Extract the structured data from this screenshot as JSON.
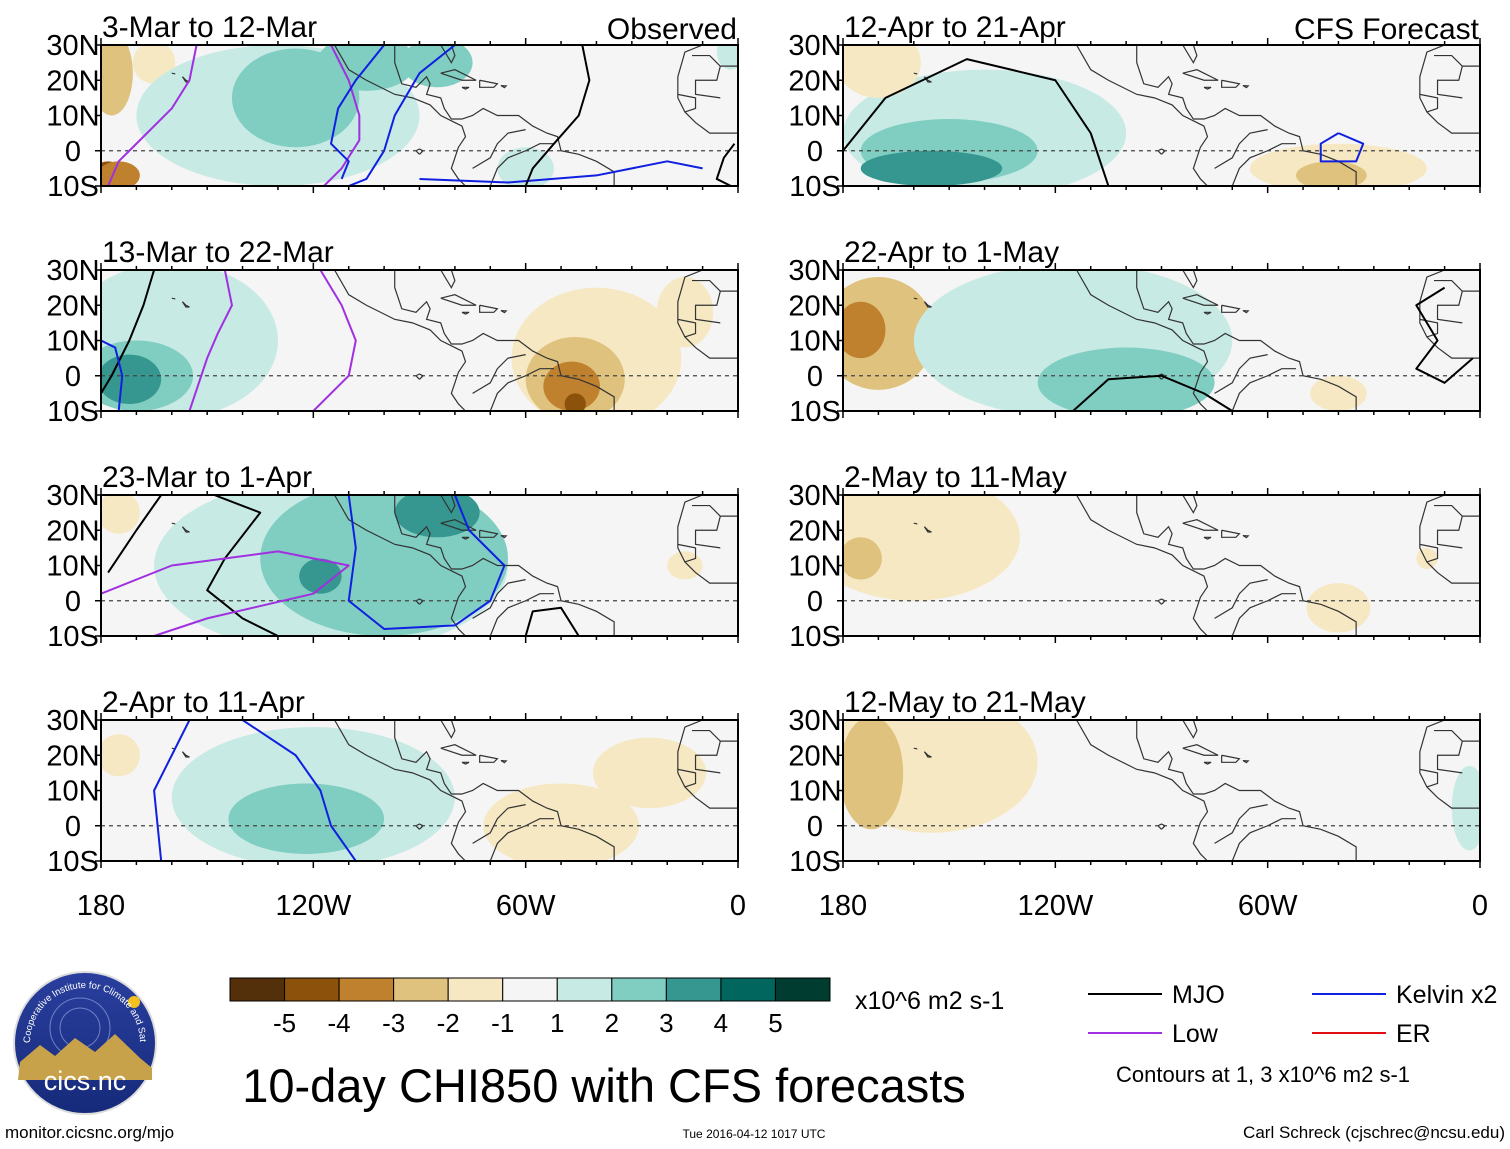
{
  "chart_data": {
    "type": "heatmap",
    "title": "10-day CHI850 with CFS forecasts",
    "columns": [
      {
        "label": "Observed",
        "panels": [
          "3-Mar to 12-Mar",
          "13-Mar to 22-Mar",
          "23-Mar to 1-Apr",
          "2-Apr to 11-Apr"
        ]
      },
      {
        "label": "CFS Forecast",
        "panels": [
          "12-Apr to 21-Apr",
          "22-Apr to 1-May",
          "2-May to 11-May",
          "12-May to 21-May"
        ]
      }
    ],
    "lat_ticks": [
      "30N",
      "20N",
      "10N",
      "0",
      "10S"
    ],
    "lat_range": [
      -10,
      30
    ],
    "lon_ticks": [
      "180",
      "120W",
      "60W",
      "0"
    ],
    "lon_range": [
      -180,
      0
    ],
    "colorbar": {
      "labels": [
        "-5",
        "-4",
        "-3",
        "-2",
        "-1",
        "1",
        "2",
        "3",
        "4",
        "5"
      ],
      "colors": [
        "#54300a",
        "#8c510a",
        "#bf812d",
        "#dfc27d",
        "#f6e8c3",
        "#f5f5f5",
        "#c7eae5",
        "#80cdc1",
        "#35978f",
        "#01665e",
        "#003c30"
      ],
      "units": "x10^6 m2 s-1"
    },
    "legend": [
      {
        "label": "MJO",
        "color": "#000000"
      },
      {
        "label": "Kelvin x2",
        "color": "#1020e0"
      },
      {
        "label": "Low",
        "color": "#a030e0"
      },
      {
        "label": "ER",
        "color": "#e01010"
      }
    ],
    "contour_note": "Contours at 1, 3 x10^6 m2 s-1",
    "panels": [
      {
        "blobs": [
          {
            "lon": -177,
            "lat": 22,
            "rl": 6,
            "rt": 12,
            "v": -2
          },
          {
            "lon": -178,
            "lat": -8,
            "rl": 5,
            "rt": 5,
            "v": -4
          },
          {
            "lon": -175,
            "lat": -7,
            "rl": 6,
            "rt": 4,
            "v": -3
          },
          {
            "lon": -165,
            "lat": 25,
            "rl": 6,
            "rt": 6,
            "v": -1
          },
          {
            "lon": -130,
            "lat": 10,
            "rl": 40,
            "rt": 20,
            "v": 1
          },
          {
            "lon": -125,
            "lat": 15,
            "rl": 18,
            "rt": 14,
            "v": 2
          },
          {
            "lon": -105,
            "lat": 25,
            "rl": 14,
            "rt": 8,
            "v": 2
          },
          {
            "lon": -85,
            "lat": 25,
            "rl": 10,
            "rt": 7,
            "v": 2
          },
          {
            "lon": -60,
            "lat": -5,
            "rl": 8,
            "rt": 6,
            "v": 1
          },
          {
            "lon": -2,
            "lat": 28,
            "rl": 4,
            "rt": 5,
            "v": 1
          }
        ],
        "lines": [
          {
            "c": "#a030e0",
            "pts": [
              [
                -178,
                -10
              ],
              [
                -175,
                -3
              ],
              [
                -167,
                5
              ],
              [
                -160,
                12
              ],
              [
                -155,
                20
              ],
              [
                -153,
                30
              ]
            ]
          },
          {
            "c": "#a030e0",
            "pts": [
              [
                -115,
                30
              ],
              [
                -110,
                20
              ],
              [
                -107,
                10
              ],
              [
                -107,
                3
              ],
              [
                -112,
                -5
              ],
              [
                -117,
                -10
              ]
            ]
          },
          {
            "c": "#1020e0",
            "pts": [
              [
                -100,
                30
              ],
              [
                -108,
                20
              ],
              [
                -113,
                12
              ],
              [
                -115,
                2
              ],
              [
                -110,
                -3
              ],
              [
                -112,
                -8
              ]
            ]
          },
          {
            "c": "#1020e0",
            "pts": [
              [
                -80,
                30
              ],
              [
                -90,
                22
              ],
              [
                -97,
                10
              ],
              [
                -100,
                0
              ],
              [
                -105,
                -8
              ],
              [
                -110,
                -10
              ]
            ]
          },
          {
            "c": "#1020e0",
            "pts": [
              [
                -90,
                -8
              ],
              [
                -65,
                -9
              ],
              [
                -40,
                -7
              ],
              [
                -20,
                -3
              ],
              [
                -10,
                -5
              ]
            ]
          },
          {
            "c": "#000000",
            "pts": [
              [
                -44,
                30
              ],
              [
                -42,
                20
              ],
              [
                -45,
                10
              ],
              [
                -52,
                2
              ],
              [
                -58,
                -5
              ],
              [
                -60,
                -10
              ]
            ]
          },
          {
            "c": "#000000",
            "pts": [
              [
                -1,
                2
              ],
              [
                -4,
                -2
              ],
              [
                -6,
                -8
              ],
              [
                -2,
                -10
              ]
            ]
          }
        ]
      },
      {
        "blobs": [
          {
            "lon": -160,
            "lat": 10,
            "rl": 30,
            "rt": 22,
            "v": 1
          },
          {
            "lon": -170,
            "lat": 0,
            "rl": 16,
            "rt": 10,
            "v": 2
          },
          {
            "lon": -172,
            "lat": -1,
            "rl": 9,
            "rt": 7,
            "v": 3
          },
          {
            "lon": -40,
            "lat": 5,
            "rl": 24,
            "rt": 20,
            "v": -1
          },
          {
            "lon": -46,
            "lat": -1,
            "rl": 14,
            "rt": 12,
            "v": -2
          },
          {
            "lon": -47,
            "lat": -3,
            "rl": 8,
            "rt": 7,
            "v": -3
          },
          {
            "lon": -46,
            "lat": -8,
            "rl": 3,
            "rt": 3,
            "v": -4
          },
          {
            "lon": -15,
            "lat": 18,
            "rl": 8,
            "rt": 10,
            "v": -1
          }
        ],
        "lines": [
          {
            "c": "#000000",
            "pts": [
              [
                -165,
                30
              ],
              [
                -168,
                20
              ],
              [
                -172,
                10
              ],
              [
                -177,
                0
              ],
              [
                -180,
                -5
              ]
            ]
          },
          {
            "c": "#a030e0",
            "pts": [
              [
                -145,
                30
              ],
              [
                -143,
                20
              ],
              [
                -147,
                12
              ],
              [
                -150,
                5
              ],
              [
                -155,
                -10
              ]
            ]
          },
          {
            "c": "#a030e0",
            "pts": [
              [
                -118,
                30
              ],
              [
                -112,
                20
              ],
              [
                -108,
                10
              ],
              [
                -110,
                0
              ],
              [
                -120,
                -10
              ]
            ]
          },
          {
            "c": "#1020e0",
            "pts": [
              [
                -180,
                10
              ],
              [
                -176,
                8
              ],
              [
                -174,
                0
              ],
              [
                -175,
                -10
              ]
            ]
          }
        ]
      },
      {
        "blobs": [
          {
            "lon": -115,
            "lat": 10,
            "rl": 50,
            "rt": 25,
            "v": 1
          },
          {
            "lon": -100,
            "lat": 12,
            "rl": 35,
            "rt": 22,
            "v": 2
          },
          {
            "lon": -85,
            "lat": 25,
            "rl": 12,
            "rt": 7,
            "v": 3
          },
          {
            "lon": -118,
            "lat": 7,
            "rl": 6,
            "rt": 5,
            "v": 3
          },
          {
            "lon": -175,
            "lat": 25,
            "rl": 6,
            "rt": 6,
            "v": -1
          },
          {
            "lon": -15,
            "lat": 10,
            "rl": 5,
            "rt": 4,
            "v": -1
          }
        ],
        "lines": [
          {
            "c": "#000000",
            "pts": [
              [
                -163,
                30
              ],
              [
                -170,
                20
              ],
              [
                -178,
                8
              ]
            ]
          },
          {
            "c": "#000000",
            "pts": [
              [
                -148,
                30
              ],
              [
                -135,
                25
              ],
              [
                -145,
                12
              ],
              [
                -150,
                3
              ],
              [
                -140,
                -5
              ],
              [
                -130,
                -10
              ]
            ]
          },
          {
            "c": "#a030e0",
            "pts": [
              [
                -180,
                2
              ],
              [
                -160,
                10
              ],
              [
                -130,
                14
              ],
              [
                -110,
                10
              ],
              [
                -120,
                2
              ],
              [
                -150,
                -5
              ],
              [
                -165,
                -10
              ]
            ]
          },
          {
            "c": "#1020e0",
            "pts": [
              [
                -110,
                30
              ],
              [
                -108,
                15
              ],
              [
                -110,
                0
              ],
              [
                -100,
                -8
              ],
              [
                -80,
                -7
              ],
              [
                -70,
                0
              ],
              [
                -66,
                10
              ],
              [
                -76,
                20
              ],
              [
                -80,
                30
              ]
            ]
          },
          {
            "c": "#000000",
            "pts": [
              [
                -60,
                -10
              ],
              [
                -58,
                -3
              ],
              [
                -50,
                -2
              ],
              [
                -45,
                -10
              ]
            ]
          }
        ]
      },
      {
        "blobs": [
          {
            "lon": -120,
            "lat": 8,
            "rl": 40,
            "rt": 20,
            "v": 1
          },
          {
            "lon": -122,
            "lat": 2,
            "rl": 22,
            "rt": 10,
            "v": 2
          },
          {
            "lon": -50,
            "lat": 0,
            "rl": 22,
            "rt": 12,
            "v": -1
          },
          {
            "lon": -25,
            "lat": 15,
            "rl": 16,
            "rt": 10,
            "v": -1
          },
          {
            "lon": -175,
            "lat": 20,
            "rl": 6,
            "rt": 6,
            "v": -1
          }
        ],
        "lines": [
          {
            "c": "#1020e0",
            "pts": [
              [
                -155,
                30
              ],
              [
                -160,
                20
              ],
              [
                -165,
                10
              ],
              [
                -164,
                0
              ],
              [
                -163,
                -10
              ]
            ]
          },
          {
            "c": "#1020e0",
            "pts": [
              [
                -140,
                30
              ],
              [
                -125,
                20
              ],
              [
                -118,
                10
              ],
              [
                -115,
                0
              ],
              [
                -108,
                -10
              ]
            ]
          }
        ]
      },
      {
        "blobs": [
          {
            "lon": -140,
            "lat": 5,
            "rl": 40,
            "rt": 18,
            "v": 1
          },
          {
            "lon": -150,
            "lat": 0,
            "rl": 25,
            "rt": 9,
            "v": 2
          },
          {
            "lon": -155,
            "lat": -5,
            "rl": 20,
            "rt": 5,
            "v": 3
          },
          {
            "lon": -170,
            "lat": 25,
            "rl": 12,
            "rt": 10,
            "v": -1
          },
          {
            "lon": -40,
            "lat": -5,
            "rl": 25,
            "rt": 7,
            "v": -1
          },
          {
            "lon": -42,
            "lat": -7,
            "rl": 10,
            "rt": 4,
            "v": -2
          }
        ],
        "lines": [
          {
            "c": "#000000",
            "pts": [
              [
                -180,
                0
              ],
              [
                -168,
                15
              ],
              [
                -145,
                26
              ],
              [
                -120,
                20
              ],
              [
                -110,
                5
              ],
              [
                -105,
                -10
              ]
            ]
          },
          {
            "c": "#1020e0",
            "pts": [
              [
                -40,
                5
              ],
              [
                -45,
                2
              ],
              [
                -45,
                -3
              ],
              [
                -35,
                -3
              ],
              [
                -33,
                2
              ],
              [
                -40,
                5
              ]
            ]
          }
        ]
      },
      {
        "blobs": [
          {
            "lon": -170,
            "lat": 12,
            "rl": 16,
            "rt": 16,
            "v": -2
          },
          {
            "lon": -175,
            "lat": 13,
            "rl": 7,
            "rt": 8,
            "v": -3
          },
          {
            "lon": -115,
            "lat": 10,
            "rl": 45,
            "rt": 22,
            "v": 1
          },
          {
            "lon": -100,
            "lat": -2,
            "rl": 25,
            "rt": 10,
            "v": 2
          },
          {
            "lon": -40,
            "lat": -5,
            "rl": 8,
            "rt": 5,
            "v": -1
          }
        ],
        "lines": [
          {
            "c": "#000000",
            "pts": [
              [
                -115,
                -10
              ],
              [
                -105,
                -1
              ],
              [
                -90,
                0
              ],
              [
                -78,
                -5
              ],
              [
                -70,
                -10
              ]
            ]
          },
          {
            "c": "#000000",
            "pts": [
              [
                -10,
                25
              ],
              [
                -18,
                20
              ],
              [
                -12,
                10
              ],
              [
                -18,
                2
              ],
              [
                -10,
                -2
              ],
              [
                -2,
                5
              ]
            ]
          }
        ]
      },
      {
        "blobs": [
          {
            "lon": -160,
            "lat": 18,
            "rl": 30,
            "rt": 18,
            "v": -1
          },
          {
            "lon": -175,
            "lat": 12,
            "rl": 6,
            "rt": 6,
            "v": -2
          },
          {
            "lon": -40,
            "lat": -2,
            "rl": 9,
            "rt": 7,
            "v": -1
          },
          {
            "lon": -15,
            "lat": 12,
            "rl": 3,
            "rt": 3,
            "v": -1
          }
        ],
        "lines": []
      },
      {
        "blobs": [
          {
            "lon": -155,
            "lat": 18,
            "rl": 30,
            "rt": 20,
            "v": -1
          },
          {
            "lon": -172,
            "lat": 15,
            "rl": 9,
            "rt": 16,
            "v": -2
          },
          {
            "lon": -3,
            "lat": 5,
            "rl": 5,
            "rt": 12,
            "v": 1
          }
        ],
        "lines": []
      }
    ]
  },
  "logo": {
    "text": "cics.nc",
    "arc_text": "Cooperative Institute for Climate and Satellites"
  },
  "footer": {
    "url": "monitor.cicsnc.org/mjo",
    "timestamp": "Tue 2016-04-12 1017 UTC",
    "author": "Carl Schreck (cjschrec@ncsu.edu)"
  }
}
